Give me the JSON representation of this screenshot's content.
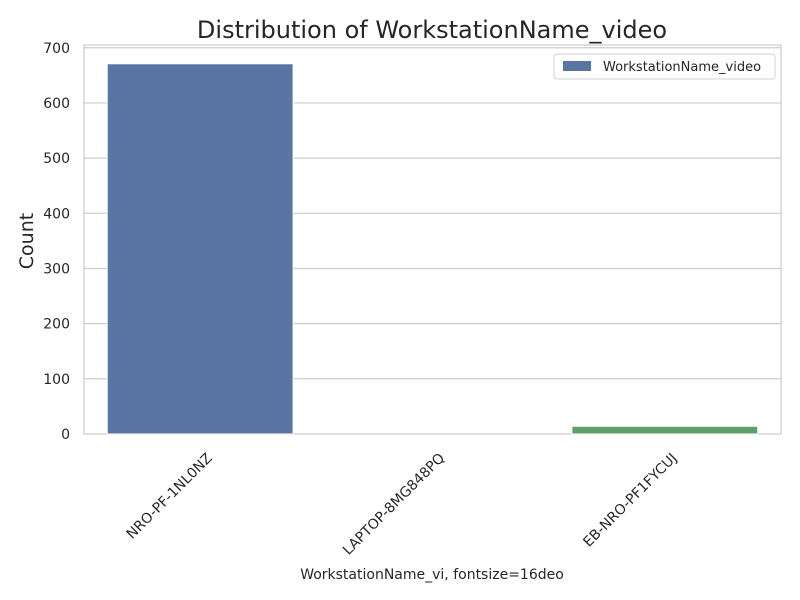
{
  "chart_data": {
    "type": "bar",
    "title": "Distribution of WorkstationName_video",
    "xlabel": "WorkstationName_vi, fontsize=16deo",
    "ylabel": "Count",
    "categories": [
      "NRO-PF-1NL0NZ",
      "LAPTOP-8MG848PQ",
      "EB-NRO-PF1FYCUJ"
    ],
    "values": [
      671,
      0,
      14
    ],
    "bar_colors": [
      "#5875a4",
      "#c44e52",
      "#5f9e6e"
    ],
    "ylim": [
      0,
      705
    ],
    "yticks": [
      "0",
      "100",
      "200",
      "300",
      "400",
      "500",
      "600",
      "700"
    ],
    "grid": "horizontal",
    "legend": {
      "position": "upper right",
      "entries": [
        {
          "label": "WorkstationName_video",
          "color": "#5875a4"
        }
      ]
    }
  }
}
